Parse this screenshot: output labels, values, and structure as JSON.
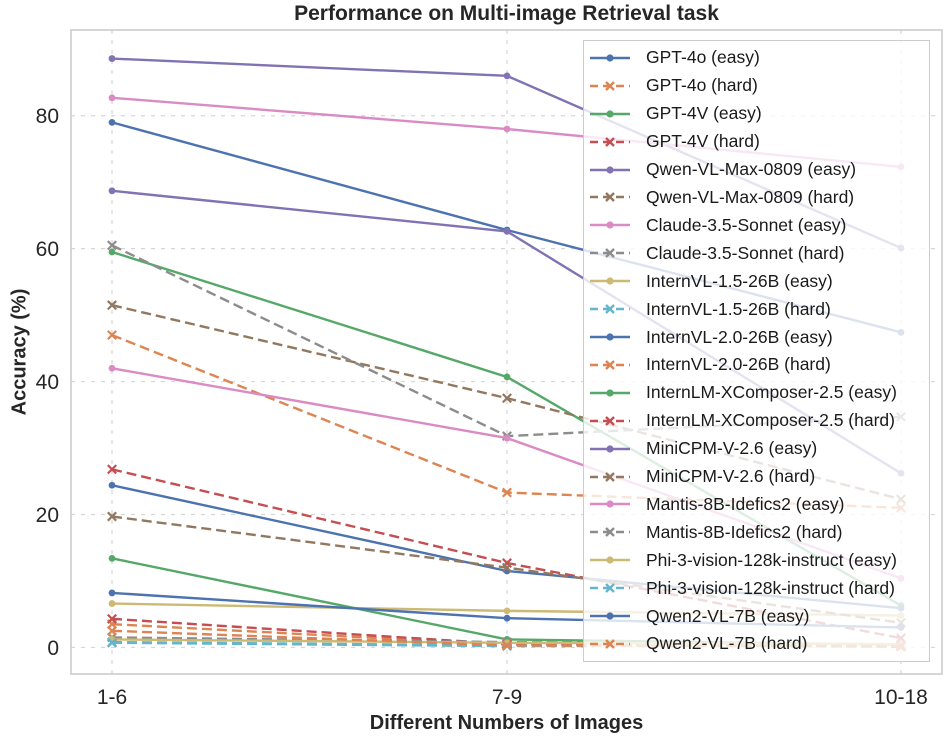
{
  "chart_data": {
    "type": "line",
    "title": "Performance on Multi-image Retrieval task",
    "xlabel": "Different Numbers of Images",
    "ylabel": "Accuracy (%)",
    "categories": [
      "1-6",
      "7-9",
      "10-18"
    ],
    "ytick_labels": [
      "0",
      "20",
      "40",
      "60",
      "80"
    ],
    "yticks": [
      0,
      20,
      40,
      60,
      80
    ],
    "ylim": [
      -4.0,
      92.9
    ],
    "grid": true,
    "grid_color": "#d6d6d6",
    "spine_color": "#cccccc",
    "text_color": "#262626",
    "legend_position": "upper right",
    "series": [
      {
        "name": "GPT-4o (easy)",
        "color": "#4C72B0",
        "style": "solid",
        "marker": "circle",
        "values": [
          79.0,
          62.8,
          47.4
        ]
      },
      {
        "name": "GPT-4o (hard)",
        "color": "#DD8452",
        "style": "dashed",
        "marker": "x",
        "values": [
          47.0,
          23.3,
          21.0
        ]
      },
      {
        "name": "GPT-4V (easy)",
        "color": "#55A868",
        "style": "solid",
        "marker": "circle",
        "values": [
          59.5,
          40.7,
          6.3
        ]
      },
      {
        "name": "GPT-4V (hard)",
        "color": "#C44E52",
        "style": "dashed",
        "marker": "x",
        "values": [
          26.8,
          12.7,
          1.4
        ]
      },
      {
        "name": "Qwen-VL-Max-0809 (easy)",
        "color": "#8172B3",
        "style": "solid",
        "marker": "circle",
        "values": [
          88.6,
          86.0,
          60.1
        ]
      },
      {
        "name": "Qwen-VL-Max-0809 (hard)",
        "color": "#937860",
        "style": "dashed",
        "marker": "x",
        "values": [
          51.5,
          37.5,
          22.3
        ]
      },
      {
        "name": "Claude-3.5-Sonnet (easy)",
        "color": "#DA8BC3",
        "style": "solid",
        "marker": "circle",
        "values": [
          82.7,
          78.0,
          72.3
        ]
      },
      {
        "name": "Claude-3.5-Sonnet (hard)",
        "color": "#8C8C8C",
        "style": "dashed",
        "marker": "x",
        "values": [
          60.5,
          31.8,
          34.7
        ]
      },
      {
        "name": "InternVL-1.5-26B (easy)",
        "color": "#CCB974",
        "style": "solid",
        "marker": "circle",
        "values": [
          6.6,
          5.5,
          4.8
        ]
      },
      {
        "name": "InternVL-1.5-26B (hard)",
        "color": "#64B5CD",
        "style": "dashed",
        "marker": "x",
        "values": [
          0.8,
          0.3,
          0.3
        ]
      },
      {
        "name": "InternVL-2.0-26B (easy)",
        "color": "#4C72B0",
        "style": "solid",
        "marker": "circle",
        "values": [
          24.4,
          11.5,
          5.9
        ]
      },
      {
        "name": "InternVL-2.0-26B (hard)",
        "color": "#DD8452",
        "style": "dashed",
        "marker": "x",
        "values": [
          3.5,
          0.4,
          0.2
        ]
      },
      {
        "name": "InternLM-XComposer-2.5 (easy)",
        "color": "#55A868",
        "style": "solid",
        "marker": "circle",
        "values": [
          13.4,
          1.2,
          0.4
        ]
      },
      {
        "name": "InternLM-XComposer-2.5 (hard)",
        "color": "#C44E52",
        "style": "dashed",
        "marker": "x",
        "values": [
          4.3,
          0.5,
          0.1
        ]
      },
      {
        "name": "MiniCPM-V-2.6 (easy)",
        "color": "#8172B3",
        "style": "solid",
        "marker": "circle",
        "values": [
          68.7,
          62.6,
          26.2
        ]
      },
      {
        "name": "MiniCPM-V-2.6 (hard)",
        "color": "#937860",
        "style": "dashed",
        "marker": "x",
        "values": [
          19.7,
          12.0,
          3.7
        ]
      },
      {
        "name": "Mantis-8B-Idefics2 (easy)",
        "color": "#DA8BC3",
        "style": "solid",
        "marker": "circle",
        "values": [
          42.0,
          31.5,
          10.4
        ]
      },
      {
        "name": "Mantis-8B-Idefics2 (hard)",
        "color": "#8C8C8C",
        "style": "dashed",
        "marker": "x",
        "values": [
          1.5,
          0.8,
          0.4
        ]
      },
      {
        "name": "Phi-3-vision-128k-instruct (easy)",
        "color": "#CCB974",
        "style": "solid",
        "marker": "circle",
        "values": [
          1.2,
          0.7,
          0.5
        ]
      },
      {
        "name": "Phi-3-vision-128k-instruct (hard)",
        "color": "#64B5CD",
        "style": "dashed",
        "marker": "x",
        "values": [
          0.7,
          0.2,
          0.2
        ]
      },
      {
        "name": "Qwen2-VL-7B (easy)",
        "color": "#4C72B0",
        "style": "solid",
        "marker": "circle",
        "values": [
          8.2,
          4.4,
          3.0
        ]
      },
      {
        "name": "Qwen2-VL-7B (hard)",
        "color": "#DD8452",
        "style": "dashed",
        "marker": "x",
        "values": [
          2.5,
          0.3,
          0.2
        ]
      }
    ]
  }
}
